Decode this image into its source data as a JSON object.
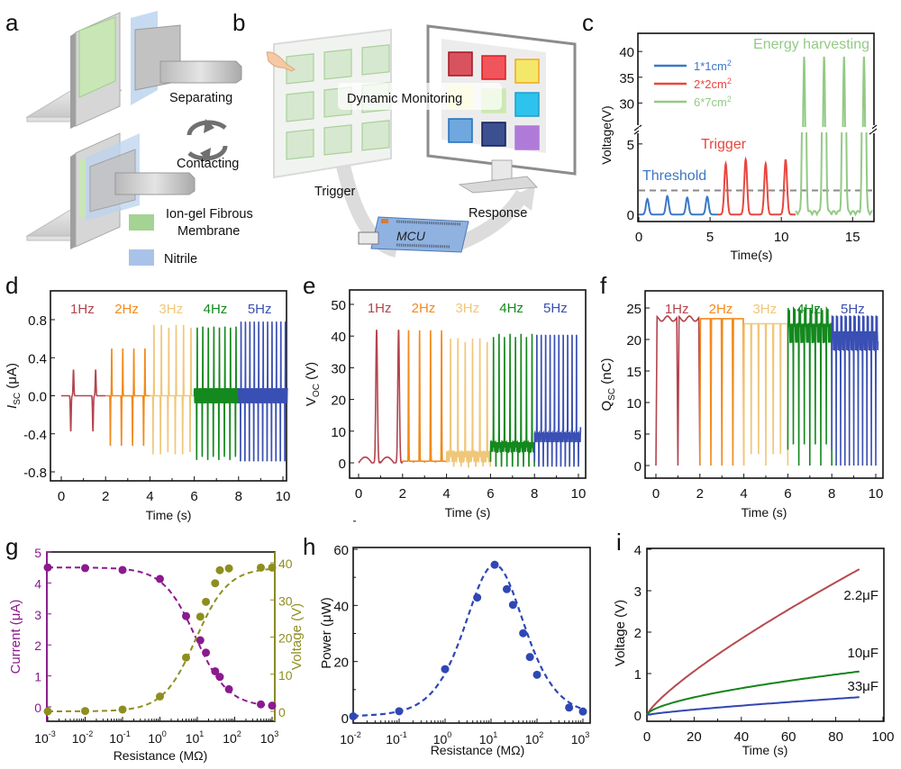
{
  "panel_labels": [
    "a",
    "b",
    "c",
    "d",
    "e",
    "f",
    "g",
    "h",
    "i"
  ],
  "panel_a": {
    "separating": "Separating",
    "contacting": "Contacting",
    "legend": [
      {
        "label_line1": "Ion-gel Fibrous",
        "label_line2": "Membrane",
        "color": "#9fd28c"
      },
      {
        "label_line1": "Nitrile",
        "label_line2": "",
        "color": "#a9c3e8"
      }
    ]
  },
  "panel_b": {
    "dynamic_monitoring": "Dynamic Monitoring",
    "trigger": "Trigger",
    "response": "Response",
    "mcu": "MCU",
    "screen_tiles": [
      "#d9535f",
      "#f0555b",
      "#f4e86b",
      "#f6f3a8",
      "#cde8b0",
      "#2ec3ec",
      "#6fa8de",
      "#3c4f8e",
      "#b07bd8"
    ],
    "tile_borders": [
      "#a3141f",
      "#e0191f",
      "#f2a81b",
      "#f6f3a8",
      "#cde8b0",
      "#1a9fcf",
      "#1f6fc0",
      "#0f1f5c",
      "#b07bd8"
    ]
  },
  "chart_data": [
    {
      "id": "c",
      "type": "line",
      "title": "",
      "xlabel": "Time(s)",
      "ylabel": "Voltage(V)",
      "xlim": [
        0,
        16.5
      ],
      "xticks": [
        0,
        5,
        10,
        15
      ],
      "ylim_broken": {
        "lower": [
          -0.5,
          5.5
        ],
        "upper": [
          25,
          43
        ]
      },
      "yticks_lower": [
        0,
        5
      ],
      "yticks_upper": [
        30,
        35,
        40
      ],
      "threshold": 1.7,
      "annotations": {
        "threshold": "Threshold",
        "trigger": "Trigger",
        "energy": "Energy harvesting"
      },
      "series": [
        {
          "name": "1*1cm",
          "sup": "2",
          "color": "#3a78c6",
          "peaks_t": [
            0.6,
            2.0,
            3.4,
            4.8
          ],
          "peak_v": [
            1.1,
            1.3,
            1.2,
            1.25
          ]
        },
        {
          "name": "2*2cm",
          "sup": "2",
          "color": "#e8473f",
          "peaks_t": [
            6.1,
            7.5,
            8.9,
            10.3
          ],
          "peak_v": [
            3.6,
            3.9,
            3.6,
            3.9
          ]
        },
        {
          "name": "6*7cm",
          "sup": "2",
          "color": "#93ca85",
          "peaks_t": [
            11.6,
            13.0,
            14.4,
            15.8
          ],
          "peak_v": [
            39,
            39,
            39,
            39
          ]
        }
      ]
    },
    {
      "id": "d",
      "type": "line",
      "xlabel": "Time (s)",
      "ylabel": "I",
      "ylabel_sub": "SC",
      "ylabel_unit": " (μA)",
      "xlim": [
        -0.3,
        10.4
      ],
      "ylim": [
        -0.86,
        1.02
      ],
      "xticks": [
        0,
        2,
        4,
        6,
        8,
        10
      ],
      "yticks": [
        -0.8,
        -0.4,
        0.0,
        0.4,
        0.8
      ],
      "ytick_labels": [
        "-0.8",
        "-0.4",
        "0.0",
        "0.4",
        "0.8"
      ],
      "series": [
        {
          "name": "1Hz",
          "color": "#b3444e",
          "t0": 0,
          "t1": 2,
          "freq": 1,
          "pos": 0.27,
          "neg": -0.37
        },
        {
          "name": "2Hz",
          "color": "#f28a1c",
          "t0": 2,
          "t1": 4,
          "freq": 2,
          "pos": 0.5,
          "neg": -0.53
        },
        {
          "name": "3Hz",
          "color": "#f0c77a",
          "t0": 4,
          "t1": 6,
          "freq": 3,
          "pos": 0.75,
          "neg": -0.62
        },
        {
          "name": "4Hz",
          "color": "#14891e",
          "t0": 6,
          "t1": 8,
          "freq": 4,
          "pos": 0.74,
          "neg": -0.6
        },
        {
          "name": "5Hz",
          "color": "#3a4fb3",
          "t0": 8,
          "t1": 10.2,
          "freq": 5,
          "pos": 0.88,
          "neg": -0.72
        }
      ]
    },
    {
      "id": "e",
      "type": "line",
      "xlabel": "Time (s)",
      "ylabel": "V",
      "ylabel_sub": "OC",
      "ylabel_unit": " (V)",
      "xlim": [
        -0.3,
        10.4
      ],
      "ylim": [
        -5,
        55
      ],
      "xticks": [
        0,
        2,
        4,
        6,
        8,
        10
      ],
      "yticks": [
        0,
        10,
        20,
        30,
        40,
        50
      ],
      "series": [
        {
          "name": "1Hz",
          "color": "#b3444e",
          "t0": 0,
          "t1": 2,
          "freq": 1,
          "peak": 42,
          "base": 0
        },
        {
          "name": "2Hz",
          "color": "#f28a1c",
          "t0": 2,
          "t1": 4,
          "freq": 2,
          "peak": 42,
          "base": 0.5
        },
        {
          "name": "3Hz",
          "color": "#f0c77a",
          "t0": 4,
          "t1": 6,
          "freq": 3,
          "peak": 40.5,
          "base": 2
        },
        {
          "name": "4Hz",
          "color": "#14891e",
          "t0": 6,
          "t1": 8,
          "freq": 4,
          "peak": 42,
          "base": 5
        },
        {
          "name": "5Hz",
          "color": "#3a4fb3",
          "t0": 8,
          "t1": 10.1,
          "freq": 5,
          "peak": 45,
          "base": 8
        }
      ]
    },
    {
      "id": "f",
      "type": "line",
      "xlabel": "Time (s)",
      "ylabel": "Q",
      "ylabel_sub": "SC",
      "ylabel_unit": " (nC)",
      "xlim": [
        -0.3,
        10.4
      ],
      "ylim": [
        -2.5,
        27
      ],
      "xticks": [
        0,
        2,
        4,
        6,
        8,
        10
      ],
      "yticks": [
        0,
        5,
        10,
        15,
        20,
        25
      ],
      "series": [
        {
          "name": "1Hz",
          "color": "#b3444e",
          "t0": 0,
          "t1": 2,
          "freq": 1,
          "top": 23.3
        },
        {
          "name": "2Hz",
          "color": "#f28a1c",
          "t0": 2,
          "t1": 4,
          "freq": 2,
          "top": 23.3
        },
        {
          "name": "3Hz",
          "color": "#f0c77a",
          "t0": 4,
          "t1": 6,
          "freq": 3,
          "top": 22.5
        },
        {
          "name": "4Hz",
          "color": "#14891e",
          "t0": 6,
          "t1": 8,
          "freq": 4,
          "top": 21
        },
        {
          "name": "5Hz",
          "color": "#3a4fb3",
          "t0": 8,
          "t1": 10.1,
          "freq": 5,
          "top": 19.8
        }
      ]
    },
    {
      "id": "g",
      "type": "scatter",
      "xlabel": "Resistance (MΩ)",
      "ylabel_left": "Current (μA)",
      "ylabel_right": "Voltage (V)",
      "xscale": "log",
      "xlim": [
        0.001,
        1000
      ],
      "xticks": [
        -3,
        -2,
        -1,
        0,
        1,
        2,
        3
      ],
      "ylim_left": [
        -0.5,
        5
      ],
      "ylim_right": [
        -1,
        43
      ],
      "yticks_left": [
        0,
        1,
        2,
        3,
        4,
        5
      ],
      "yticks_right": [
        0,
        10,
        20,
        30,
        40
      ],
      "series": [
        {
          "name": "Current",
          "axis": "left",
          "color": "#8b1a8f",
          "x": [
            0.001,
            0.01,
            0.1,
            1,
            5,
            12,
            17,
            30,
            40,
            70,
            500,
            1000
          ],
          "y": [
            4.5,
            4.48,
            4.42,
            4.13,
            2.93,
            2.15,
            1.75,
            1.15,
            0.97,
            0.57,
            0.08,
            0.04
          ]
        },
        {
          "name": "Voltage",
          "axis": "right",
          "color": "#8e8e1f",
          "x": [
            0.001,
            0.01,
            0.1,
            1,
            5,
            12,
            17,
            30,
            40,
            70,
            500,
            1000
          ],
          "y": [
            0,
            0.1,
            0.5,
            4,
            14.5,
            25.5,
            29.5,
            34.5,
            38,
            38.5,
            38.7,
            38.7
          ]
        }
      ]
    },
    {
      "id": "h",
      "type": "scatter",
      "xlabel": "Resistance (MΩ)",
      "ylabel": "Power (μW)",
      "xscale": "log",
      "xlim": [
        0.01,
        1000
      ],
      "xticks": [
        -2,
        -1,
        0,
        1,
        2,
        3
      ],
      "ylim": [
        -1,
        60
      ],
      "yticks": [
        0,
        20,
        40,
        60
      ],
      "series": [
        {
          "name": "Power",
          "color": "#2f47b5",
          "x": [
            0.01,
            0.1,
            1,
            5,
            12,
            22,
            30,
            50,
            70,
            100,
            500,
            1000
          ],
          "y": [
            0.5,
            2.3,
            17.3,
            42.8,
            54.5,
            45.8,
            40.2,
            30.1,
            21.6,
            15.3,
            3.6,
            2.2
          ]
        }
      ]
    },
    {
      "id": "i",
      "type": "line",
      "xlabel": "Time (s)",
      "ylabel": "Voltage (V)",
      "xlim": [
        0,
        100
      ],
      "ylim": [
        -0.2,
        4
      ],
      "xticks": [
        0,
        20,
        40,
        60,
        80,
        100
      ],
      "yticks": [
        0,
        1,
        2,
        3,
        4
      ],
      "series": [
        {
          "name": "2.2μF",
          "color": "#b54a4e",
          "end_t": 90,
          "end_v": 3.52,
          "exp": 0.8
        },
        {
          "name": "10μF",
          "color": "#15841b",
          "end_t": 90,
          "end_v": 1.05,
          "exp": 0.6
        },
        {
          "name": "33μF",
          "color": "#3246b0",
          "end_t": 90,
          "end_v": 0.43,
          "exp": 0.8
        }
      ]
    }
  ]
}
